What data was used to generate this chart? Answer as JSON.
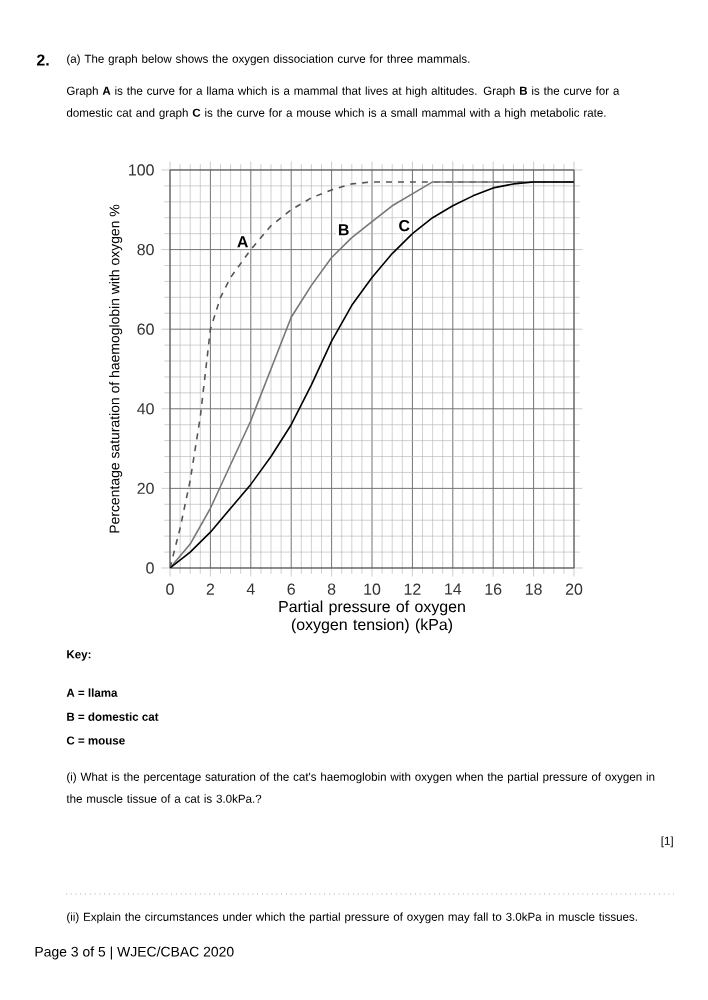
{
  "chart_data": {
    "type": "line",
    "xlabel": "Partial pressure of oxygen (oxygen tension) (kPa)",
    "ylabel": "Percentage saturation of haemoglobin with oxygen %",
    "xlim": [
      0,
      20
    ],
    "ylim": [
      0,
      100
    ],
    "xticks": [
      0,
      2,
      4,
      6,
      8,
      10,
      12,
      14,
      16,
      18,
      20
    ],
    "yticks": [
      0,
      20,
      40,
      60,
      80,
      100
    ],
    "grid": true,
    "legend": false,
    "series": [
      {
        "name": "A",
        "color": "#555555",
        "line_style": "dashed",
        "x": [
          0,
          0.5,
          1,
          1.5,
          2,
          2.5,
          3,
          4,
          5,
          6,
          7,
          8,
          9,
          10,
          12,
          20
        ],
        "values": [
          0,
          10,
          22,
          38,
          60,
          68,
          73,
          80,
          86,
          90,
          93,
          95,
          96.5,
          97,
          97,
          97
        ]
      },
      {
        "name": "B",
        "color": "#777777",
        "line_style": "solid",
        "x": [
          0,
          1,
          2,
          3,
          4,
          5,
          6,
          7,
          8,
          9,
          10,
          11,
          12,
          13,
          14,
          20
        ],
        "values": [
          0,
          6,
          15,
          26,
          37,
          50,
          63,
          71,
          78,
          83,
          87,
          91,
          94,
          97,
          97,
          97
        ]
      },
      {
        "name": "C",
        "color": "#000000",
        "line_style": "solid",
        "x": [
          0,
          1,
          2,
          3,
          4,
          5,
          6,
          7,
          8,
          9,
          10,
          11,
          12,
          13,
          14,
          15,
          16,
          17,
          18,
          20
        ],
        "values": [
          0,
          4,
          9,
          15,
          21,
          28,
          36,
          46,
          57,
          66,
          73,
          79,
          84,
          88,
          91,
          93.5,
          95.5,
          96.5,
          97,
          97
        ]
      }
    ],
    "annotations": [
      "2.",
      "(a) The graph below shows the oxygen dissociation curve for three mammals.",
      "Graph **A** is the curve for a llama which is a mammal that lives at high altitudes. Graph **B** is the curve for a domestic cat and graph **C** is the curve for a mouse which is a small mammal with a high metabolic rate.",
      "Key:",
      "A = llama",
      "B = domestic cat",
      "C = mouse",
      "(i) What is the percentage saturation of the cat's haemoglobin with oxygen when the partial pressure of oxygen in the muscle tissue of a cat is 3.0kPa.?",
      "[1]",
      "(ii) Explain the circumstances under which the partial pressure of oxygen may fall to 3.0kPa in muscle tissues.",
      "Page 3 of 5 | WJEC/CBAC 2020"
    ]
  }
}
